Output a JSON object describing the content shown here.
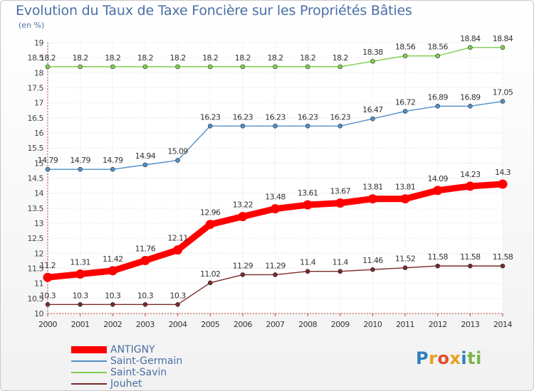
{
  "header": {
    "title": "Evolution du Taux de Taxe Foncière sur les Propriétés Bâties",
    "unit": "(en %)"
  },
  "logo": {
    "text": "Proxiti"
  },
  "chart_data": {
    "type": "line",
    "title": "Evolution du Taux de Taxe Foncière sur les Propriétés Bâties",
    "ylabel": "(en %)",
    "xlabel": "",
    "x": [
      "2000",
      "2001",
      "2002",
      "2003",
      "2004",
      "2005",
      "2006",
      "2007",
      "2008",
      "2009",
      "2010",
      "2011",
      "2012",
      "2013",
      "2014"
    ],
    "ylim": [
      10,
      19
    ],
    "yticks": [
      "10",
      "10.5",
      "11",
      "11.5",
      "12",
      "12.5",
      "13",
      "13.5",
      "14",
      "14.5",
      "15",
      "15.5",
      "16",
      "16.5",
      "17",
      "17.5",
      "18",
      "18.5",
      "19"
    ],
    "grid": true,
    "legend_position": "bottom-left",
    "series": [
      {
        "name": "ANTIGNY",
        "color": "#ff0000",
        "values": [
          11.2,
          11.31,
          11.42,
          11.76,
          12.11,
          12.96,
          13.22,
          13.48,
          13.61,
          13.67,
          13.81,
          13.81,
          14.09,
          14.23,
          14.3
        ],
        "labels": [
          "11.2",
          "11.31",
          "11.42",
          "11.76",
          "12.11",
          "12.96",
          "13.22",
          "13.48",
          "13.61",
          "13.67",
          "13.81",
          "13.81",
          "14.09",
          "14.23",
          "14.3"
        ]
      },
      {
        "name": "Saint-Germain",
        "color": "#4f90c9",
        "values": [
          14.79,
          14.79,
          14.79,
          14.94,
          15.09,
          16.23,
          16.23,
          16.23,
          16.23,
          16.23,
          16.47,
          16.72,
          16.89,
          16.89,
          17.05
        ],
        "labels": [
          "14.79",
          "14.79",
          "14.79",
          "14.94",
          "15.09",
          "16.23",
          "16.23",
          "16.23",
          "16.23",
          "16.23",
          "16.47",
          "16.72",
          "16.89",
          "16.89",
          "17.05"
        ]
      },
      {
        "name": "Saint-Savin",
        "color": "#7fce50",
        "values": [
          18.2,
          18.2,
          18.2,
          18.2,
          18.2,
          18.2,
          18.2,
          18.2,
          18.2,
          18.2,
          18.38,
          18.56,
          18.56,
          18.84,
          18.84
        ],
        "labels": [
          "18.2",
          "18.2",
          "18.2",
          "18.2",
          "18.2",
          "18.2",
          "18.2",
          "18.2",
          "18.2",
          "18.2",
          "18.38",
          "18.56",
          "18.56",
          "18.84",
          "18.84"
        ]
      },
      {
        "name": "Jouhet",
        "color": "#7a2a2a",
        "values": [
          10.3,
          10.3,
          10.3,
          10.3,
          10.3,
          11.02,
          11.29,
          11.29,
          11.4,
          11.4,
          11.46,
          11.52,
          11.58,
          11.58,
          11.58
        ],
        "labels": [
          "10.3",
          "10.3",
          "10.3",
          "10.3",
          "10.3",
          "11.02",
          "11.29",
          "11.29",
          "11.4",
          "11.4",
          "11.46",
          "11.52",
          "11.58",
          "11.58",
          "11.58"
        ]
      }
    ]
  }
}
